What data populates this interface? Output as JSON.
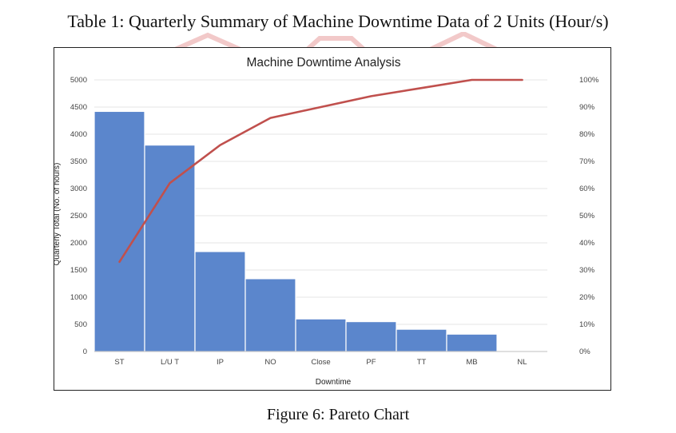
{
  "header": {
    "title": "Table 1: Quarterly Summary of Machine Downtime Data of 2 Units (Hour/s)"
  },
  "caption": "Figure 6: Pareto Chart",
  "colors": {
    "bar": "#5b86cc",
    "line": "#c0504d",
    "grid": "#e6e6e6",
    "text": "#444444"
  },
  "chart_data": {
    "type": "bar",
    "title": "Machine Downtime Analysis",
    "xlabel": "Downtime",
    "ylabel": "Quarterly Total (No. of hours)",
    "ylim": [
      0,
      5000
    ],
    "y2lim": [
      0,
      100
    ],
    "grid": true,
    "categories": [
      "ST",
      "L/U T",
      "IP",
      "NO",
      "Close",
      "PF",
      "TT",
      "MB",
      "NL"
    ],
    "yticks": [
      "0",
      "500",
      "1000",
      "1500",
      "2000",
      "2500",
      "3000",
      "3500",
      "4000",
      "4500",
      "5000"
    ],
    "y2ticks": [
      "0%",
      "10%",
      "20%",
      "30%",
      "40%",
      "50%",
      "60%",
      "70%",
      "80%",
      "90%",
      "100%"
    ],
    "series": [
      {
        "type": "bar",
        "values": [
          4420,
          3800,
          1840,
          1340,
          600,
          550,
          410,
          320,
          0
        ]
      },
      {
        "type": "line",
        "axis": "secondary",
        "values": [
          33,
          62,
          76,
          86,
          90,
          94,
          97,
          100,
          100
        ]
      }
    ]
  }
}
